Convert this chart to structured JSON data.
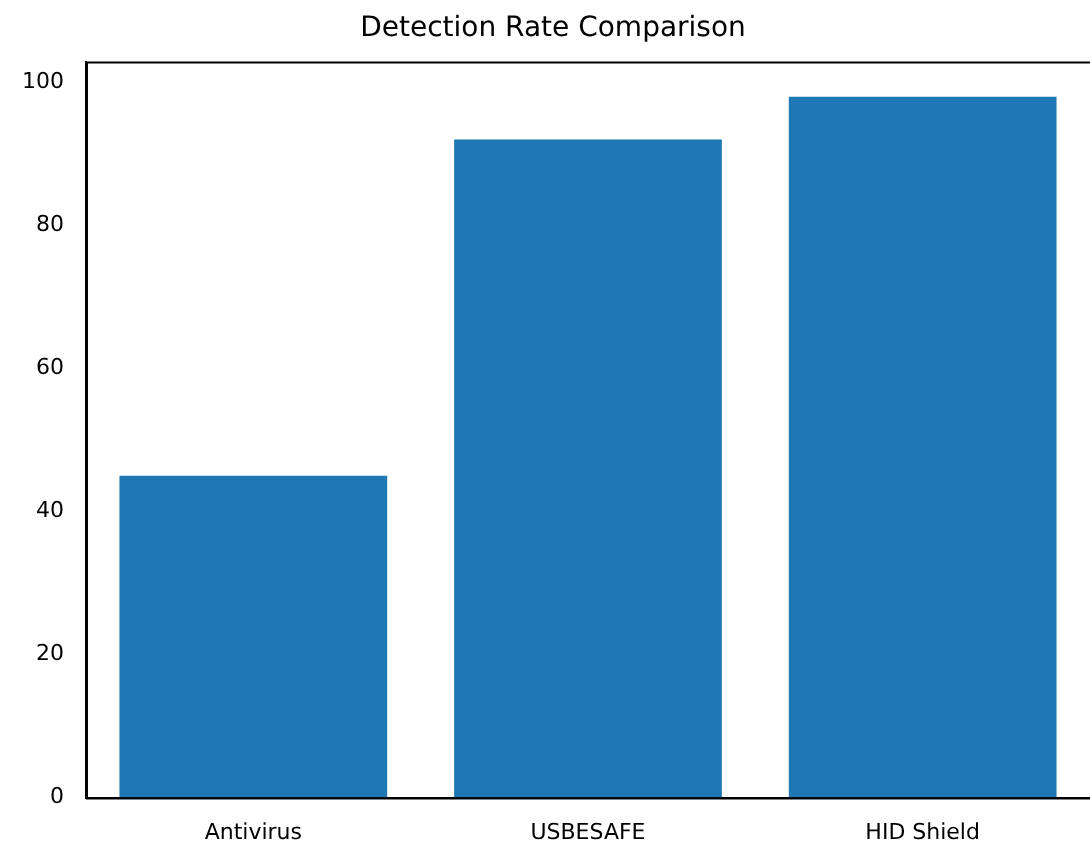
{
  "chart_data": {
    "type": "bar",
    "title": "Detection Rate Comparison",
    "categories": [
      "Antivirus",
      "USBESAFE",
      "HID Shield"
    ],
    "values": [
      45,
      92,
      98
    ],
    "color": "#1f77b4",
    "ylim": [
      0,
      102.9
    ],
    "yticks": [
      0,
      20,
      40,
      60,
      80,
      100
    ],
    "grid": false,
    "legend": false
  }
}
